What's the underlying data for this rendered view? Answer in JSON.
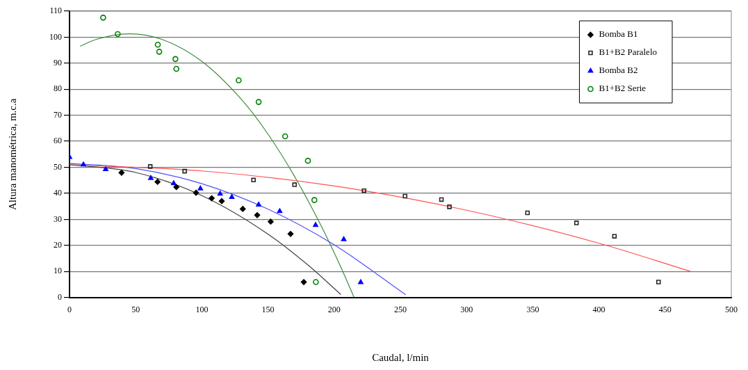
{
  "chart_data": {
    "type": "scatter",
    "xlabel": "Caudal, l/min",
    "ylabel": "Altura manométrica, m.c.a",
    "xlim": [
      0,
      500
    ],
    "xticks": [
      0,
      50,
      100,
      150,
      200,
      250,
      300,
      350,
      400,
      450,
      500
    ],
    "ylim": [
      0,
      110
    ],
    "yticks": [
      0,
      10,
      20,
      30,
      40,
      50,
      60,
      70,
      80,
      90,
      100,
      110
    ],
    "grid": "y",
    "legend": "top right",
    "series": [
      {
        "name": "Bomba B1",
        "marker": "diamond",
        "color": "#000000",
        "x": [
          39.3,
          66.5,
          80.7,
          95.6,
          107.4,
          115,
          130.9,
          141.8,
          152,
          167,
          177
        ],
        "values": [
          47.9,
          44.4,
          42.4,
          40.2,
          38.1,
          37,
          34,
          31.6,
          29.1,
          24.4,
          5.9
        ]
      },
      {
        "name": "B1+B2 Paralelo",
        "marker": "square",
        "color": "#262626",
        "x": [
          61,
          87,
          139,
          170,
          222.5,
          253.5,
          281,
          287,
          346,
          383,
          411.7,
          445
        ],
        "values": [
          50.3,
          48.5,
          45.1,
          43.3,
          41,
          38.9,
          37.6,
          34.8,
          32.5,
          28.6,
          23.5,
          5.9
        ]
      },
      {
        "name": "Bomba B2",
        "marker": "triangle",
        "color": "#0000ff",
        "x": [
          0,
          10.5,
          27.3,
          61.4,
          78.7,
          98.9,
          113.8,
          122.6,
          142.9,
          158.8,
          185.9,
          207.2,
          220
        ],
        "values": [
          53.9,
          51,
          49.2,
          45.8,
          43.8,
          41.8,
          39.8,
          38.5,
          35.6,
          33.1,
          27.8,
          22.3,
          5.8
        ]
      },
      {
        "name": "B1+B2 Serie",
        "marker": "circle",
        "color": "#008000",
        "x": [
          25.4,
          36.4,
          66.7,
          67.8,
          80,
          80.7,
          127.8,
          142.9,
          162.9,
          180.1,
          185,
          186.1
        ],
        "values": [
          107.5,
          101.2,
          97.1,
          94.4,
          91.6,
          87.8,
          83.4,
          75.1,
          61.9,
          52.5,
          37.4,
          5.9
        ]
      },
      {
        "type": "line",
        "marker": "none",
        "color": "#404040",
        "x": [
          0,
          50,
          100,
          150,
          180,
          205
        ],
        "values": [
          51,
          48,
          39.1,
          24.3,
          12.5,
          1.1
        ]
      },
      {
        "type": "line",
        "marker": "none",
        "color": "#ff5050",
        "x": [
          0,
          100,
          200,
          300,
          400,
          469
        ],
        "values": [
          51,
          48.6,
          42.8,
          33.5,
          20.8,
          10
        ]
      },
      {
        "type": "line",
        "marker": "none",
        "color": "#5050ff",
        "x": [
          0,
          50,
          100,
          150,
          200,
          254
        ],
        "values": [
          51.5,
          49.5,
          43.7,
          33.9,
          20.2,
          1
        ]
      },
      {
        "type": "line",
        "marker": "none",
        "color": "#3c8c3c",
        "x": [
          8,
          20,
          45,
          70,
          100,
          130,
          150,
          170,
          190,
          205,
          215
        ],
        "values": [
          96.5,
          99.1,
          101.3,
          99.1,
          90.7,
          76,
          62.7,
          46.5,
          27.6,
          11.6,
          0
        ]
      }
    ]
  }
}
